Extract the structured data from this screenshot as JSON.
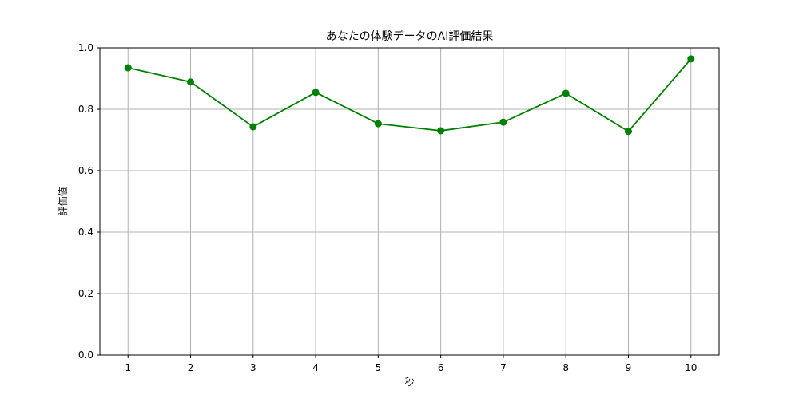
{
  "chart_data": {
    "type": "line",
    "title": "あなたの体験データのAI評価結果",
    "xlabel": "秒",
    "ylabel": "評価値",
    "x": [
      1,
      2,
      3,
      4,
      5,
      6,
      7,
      8,
      9,
      10
    ],
    "series": [
      {
        "values": [
          0.935,
          0.889,
          0.743,
          0.855,
          0.753,
          0.73,
          0.758,
          0.852,
          0.728,
          0.964
        ],
        "color": "#008000",
        "marker": "circle"
      }
    ],
    "xlim": [
      0.55,
      10.45
    ],
    "ylim": [
      0,
      1
    ],
    "x_ticks": [
      "1",
      "2",
      "3",
      "4",
      "5",
      "6",
      "7",
      "8",
      "9",
      "10"
    ],
    "y_ticks": [
      "0.0",
      "0.2",
      "0.4",
      "0.6",
      "0.8",
      "1.0"
    ],
    "grid": true,
    "grid_color": "#b0b0b0"
  }
}
